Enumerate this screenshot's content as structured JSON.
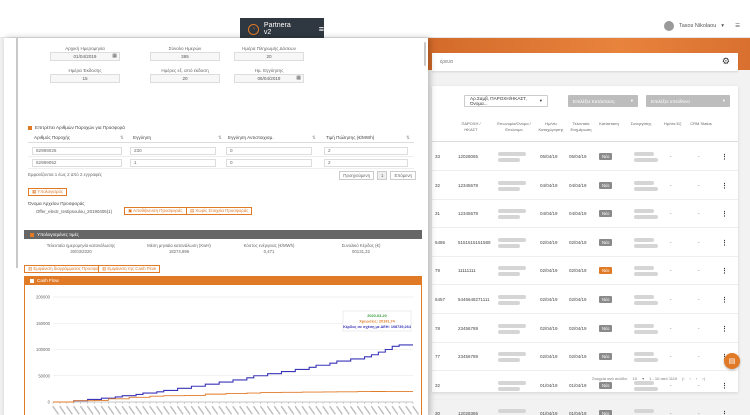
{
  "app": {
    "brand": "Partnera v2",
    "user": "Tasos Nikolaou"
  },
  "filter": {
    "placeholder": "έρευα"
  },
  "list": {
    "selects": [
      {
        "label": "Αρ.Σαμβ, ΠΑΡΟΧΗ/ΗΚΑΣΤ, Όνομα..."
      },
      {
        "label": "Επιλέξτε Κατάσταση"
      },
      {
        "label": "Επιλέξτε υπεύθυνο"
      }
    ],
    "headers": [
      "ΠΑΡΟΧΗ / ΗΚΑΣΤ",
      "Επωνυμία/Ονομα / Επώνυμο",
      "Ημ/νία Καταχώρησης",
      "Τελευταία Ενημέρωση",
      "Κατάσταση",
      "Συνεργάτης",
      "Ημ/νία Εξ.",
      "CRM Status"
    ],
    "rows": [
      {
        "id": "33",
        "paroxi": "12028065",
        "date1": "05/04/19",
        "date2": "05/04/19",
        "status": "Νέο",
        "accent": false
      },
      {
        "id": "32",
        "paroxi": "12345678",
        "date1": "04/04/19",
        "date2": "04/04/19",
        "status": "Νέο",
        "accent": false
      },
      {
        "id": "31",
        "paroxi": "12345678",
        "date1": "04/04/19",
        "date2": "04/04/19",
        "status": "Νέο",
        "accent": false
      },
      {
        "id": "5486",
        "paroxi": "5151515151589",
        "date1": "02/04/19",
        "date2": "02/04/19",
        "status": "Νέο",
        "accent": false
      },
      {
        "id": "79",
        "paroxi": "11111111",
        "date1": "02/04/19",
        "date2": "02/04/19",
        "status": "Νέο",
        "accent": true
      },
      {
        "id": "5457",
        "paroxi": "5446648271111",
        "date1": "02/04/19",
        "date2": "02/04/19",
        "status": "Νέο",
        "accent": false
      },
      {
        "id": "78",
        "paroxi": "23456789",
        "date1": "02/04/19",
        "date2": "02/04/19",
        "status": "Νέο",
        "accent": false
      },
      {
        "id": "77",
        "paroxi": "23456789",
        "date1": "02/04/19",
        "date2": "02/04/19",
        "status": "Νέο",
        "accent": false
      },
      {
        "id": "32",
        "paroxi": "",
        "date1": "01/04/19",
        "date2": "01/04/19",
        "status": "Νέο",
        "accent": false
      },
      {
        "id": "30",
        "paroxi": "12028365",
        "date1": "01/04/19",
        "date2": "01/04/19",
        "status": "Νέο",
        "accent": false
      }
    ],
    "pager": {
      "rows_label": "Στοιχεία ανά σελίδα:",
      "rows_per_page": "10",
      "range": "1 - 10 από 1110"
    }
  },
  "modal": {
    "fields": [
      {
        "label": "Αρχική Ημερομηνία",
        "value": "01/04/2019",
        "calendar": true
      },
      {
        "label": "Σύνολο Ημερών",
        "value": "365",
        "calendar": false
      },
      {
        "label": "Ημέρα Πληρωμής Δόσεων",
        "value": "20",
        "calendar": false
      },
      {
        "label": "Ημέρα Έκδοσης",
        "value": "15",
        "calendar": false
      },
      {
        "label": "Ημέρες εξ. από έκδοση",
        "value": "20",
        "calendar": false
      },
      {
        "label": "Ημ. Εγγύησης",
        "value": "06/04/2019",
        "calendar": true
      }
    ],
    "provisions_title": "Επιτρέπει Αριθμών Παροχών για Προσφορά",
    "provisions_headers": [
      "Αριθμός Παροχής",
      "Εγγύηση",
      "Εγγύηση Αντιστοιχισμ.",
      "Τιμή Πώλησης (€/MWh)"
    ],
    "provisions_rows": [
      [
        "62989025",
        "230",
        "0",
        "2"
      ],
      [
        "62989052",
        "1",
        "0",
        "2"
      ]
    ],
    "provisions_info": "Εμφανίζονται 1 έως 2 από 2 εγγραφές",
    "pager": {
      "prev": "Προηγούμενη",
      "page": "1",
      "next": "Επόμενη"
    },
    "calc_button": "Υπολογισμός",
    "offer_label": "Όνομα Αρχείου Προσφοράς",
    "offer_file": "Offer_electr_testipsoulou_20190405(1)",
    "offer_button1": "Αποθήκευση Προσφοράς",
    "offer_button2": "Χωρίς Στοιχεία Προσφοράς",
    "summary_title": "Υπολογισμένες τιμές",
    "summary": [
      {
        "label": "Τελευταία ημερομηνία κατανάλωσης",
        "value": "30/03/2020"
      },
      {
        "label": "Μέση μηνιαία κατανάλωση (KwH)",
        "value": "18274,896"
      },
      {
        "label": "Κόστος ενέργειας (€/MWh)",
        "value": "0,471"
      },
      {
        "label": "Συνολικό Κέρδος (€)",
        "value": "00131,32"
      }
    ],
    "btn_chart": "Εμφάνιση διαγράμματος Προσφοράς",
    "btn_flow": "Εμφάνιση της Cash Flow",
    "cashflow_title": "Cash Flow",
    "chart_tooltip": {
      "date": "2020-03-20",
      "line1": "Χρεώσεις: 20191,74",
      "line2": "Κέρδος σε σχέση με ΔΕΗ: 108739,264"
    }
  },
  "chart_data": {
    "type": "line",
    "title": "Cash Flow",
    "ylim": [
      0,
      200000
    ],
    "yticks": [
      0,
      50000,
      100000,
      150000,
      200000
    ],
    "grid": true,
    "legend": "none",
    "x_tick_count": 53,
    "series": [
      {
        "color": "#3a35b8",
        "values": [
          0,
          0,
          0,
          2400,
          2400,
          4800,
          4800,
          7200,
          7200,
          9600,
          12000,
          12000,
          14500,
          17000,
          17000,
          19500,
          22000,
          22000,
          26000,
          26000,
          30000,
          30000,
          34000,
          34000,
          38000,
          38000,
          42000,
          42000,
          46000,
          50000,
          50000,
          54000,
          54000,
          58000,
          58000,
          62000,
          62000,
          66000,
          70000,
          70000,
          74000,
          78000,
          78000,
          82000,
          82000,
          86000,
          90000,
          95000,
          100000,
          106000,
          108739,
          108739,
          108739
        ]
      },
      {
        "color": "#e07a27",
        "values": [
          0,
          0,
          0,
          2500,
          2500,
          2500,
          3000,
          3000,
          6000,
          6000,
          6000,
          9000,
          9000,
          9000,
          11000,
          11000,
          12000,
          12000,
          12000,
          12500,
          12500,
          12500,
          15000,
          15000,
          15000,
          16000,
          16000,
          16000,
          17000,
          17000,
          18000,
          18000,
          18000,
          18500,
          18500,
          18500,
          19000,
          19000,
          19000,
          19200,
          19200,
          19500,
          19500,
          19500,
          19800,
          19800,
          20000,
          20000,
          20100,
          20191,
          20191,
          20191,
          20191
        ]
      }
    ]
  }
}
